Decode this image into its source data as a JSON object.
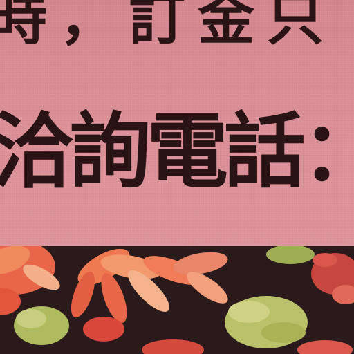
{
  "sign": {
    "line_top": "時，訂金只",
    "line_main": "洽詢電話："
  },
  "colors": {
    "paper": "#d98a94",
    "ink": "#2a1315",
    "fabric_dark": "#2a1a1c",
    "petal_orange": "#e8674a",
    "petal_light": "#f3b08a",
    "leaf_green": "#b9c26a"
  }
}
